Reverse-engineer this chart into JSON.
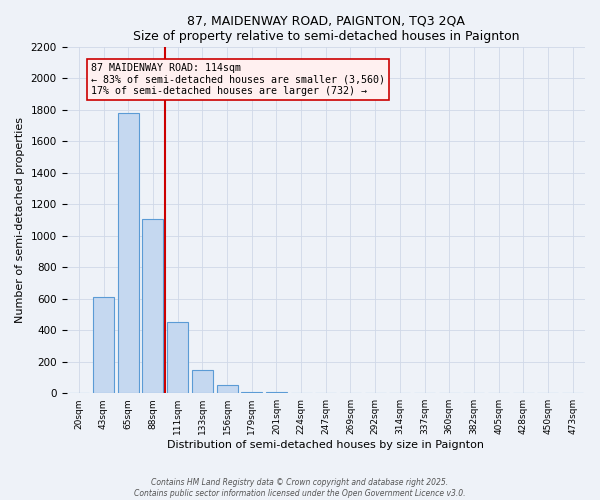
{
  "title": "87, MAIDENWAY ROAD, PAIGNTON, TQ3 2QA",
  "subtitle": "Size of property relative to semi-detached houses in Paignton",
  "xlabel": "Distribution of semi-detached houses by size in Paignton",
  "ylabel": "Number of semi-detached properties",
  "bar_color": "#c5d8f0",
  "bar_edge_color": "#5b9bd5",
  "property_line_color": "#cc0000",
  "annotation_title": "87 MAIDENWAY ROAD: 114sqm",
  "annotation_line1": "← 83% of semi-detached houses are smaller (3,560)",
  "annotation_line2": "17% of semi-detached houses are larger (732) →",
  "annotation_box_facecolor": "#fff0f0",
  "annotation_edge_color": "#cc0000",
  "categories": [
    "20sqm",
    "43sqm",
    "65sqm",
    "88sqm",
    "111sqm",
    "133sqm",
    "156sqm",
    "179sqm",
    "201sqm",
    "224sqm",
    "247sqm",
    "269sqm",
    "292sqm",
    "314sqm",
    "337sqm",
    "360sqm",
    "382sqm",
    "405sqm",
    "428sqm",
    "450sqm",
    "473sqm"
  ],
  "values": [
    0,
    610,
    1780,
    1110,
    450,
    150,
    50,
    10,
    5,
    2,
    1,
    0,
    0,
    0,
    0,
    0,
    0,
    0,
    0,
    0,
    0
  ],
  "ylim": [
    0,
    2200
  ],
  "yticks": [
    0,
    200,
    400,
    600,
    800,
    1000,
    1200,
    1400,
    1600,
    1800,
    2000,
    2200
  ],
  "property_line_x": 3.5,
  "background_color": "#eef2f8",
  "grid_color": "#d0d8e8",
  "footer1": "Contains HM Land Registry data © Crown copyright and database right 2025.",
  "footer2": "Contains public sector information licensed under the Open Government Licence v3.0."
}
